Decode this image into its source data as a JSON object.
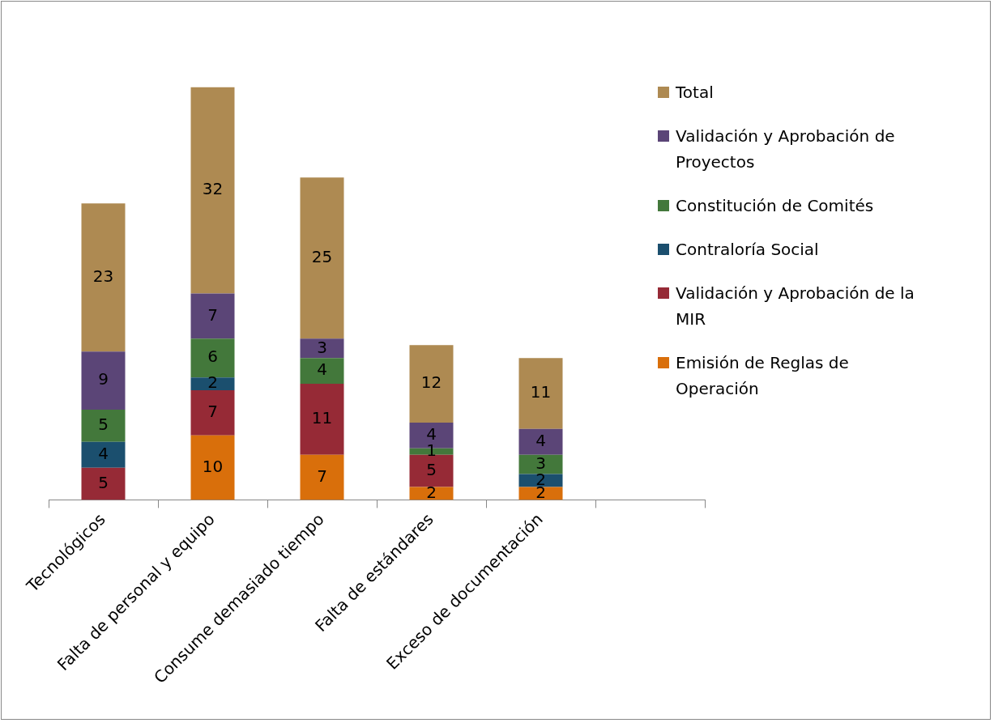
{
  "chart_data": {
    "type": "bar",
    "stacked": true,
    "data_labels": true,
    "legend": "right",
    "categories": [
      "Tecnológicos",
      "Falta de personal y equipo",
      "Consume demasiado tiempo",
      "Falta de estándares",
      "Exceso de documentación",
      null
    ],
    "series": [
      {
        "name": "Emisión de Reglas de Operación",
        "color": "#d96f0b",
        "values": [
          null,
          10,
          7,
          2,
          2,
          null
        ]
      },
      {
        "name": "Validación y Aprobación de la MIR",
        "color": "#962a36",
        "values": [
          5,
          7,
          11,
          5,
          null,
          null
        ]
      },
      {
        "name": "Contraloría Social",
        "color": "#1b4f6e",
        "values": [
          4,
          2,
          null,
          null,
          2,
          null
        ]
      },
      {
        "name": "Constitución de Comités",
        "color": "#43783b",
        "values": [
          5,
          6,
          4,
          1,
          3,
          null
        ]
      },
      {
        "name": "Validación y Aprobación de Proyectos",
        "color": "#5b4577",
        "values": [
          9,
          7,
          3,
          4,
          4,
          null
        ]
      },
      {
        "name": "Total",
        "color": "#ae8a52",
        "values": [
          23,
          32,
          25,
          12,
          11,
          null
        ]
      }
    ]
  }
}
